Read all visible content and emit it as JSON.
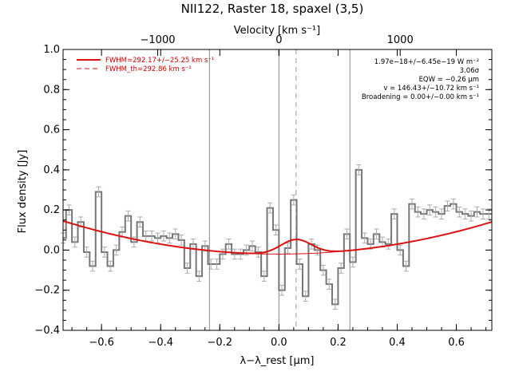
{
  "chart_data": {
    "type": "line",
    "title": "NII122, Raster 18, spaxel (3,5)",
    "xlabel": "λ−λ_rest [μm]",
    "ylabel": "Flux density [Jy]",
    "top_axis_label": "Velocity [km s⁻¹]",
    "xlim": [
      -0.73,
      0.72
    ],
    "ylim": [
      -0.4,
      1.0
    ],
    "x_ticks": [
      -0.6,
      -0.4,
      -0.2,
      0.0,
      0.2,
      0.4,
      0.6
    ],
    "x_tick_labels": [
      "−0.6",
      "−0.4",
      "−0.2",
      "0.0",
      "0.2",
      "0.4",
      "0.6"
    ],
    "y_ticks": [
      -0.4,
      -0.2,
      0.0,
      0.2,
      0.4,
      0.6,
      0.8,
      1.0
    ],
    "y_tick_labels": [
      "−0.4",
      "−0.2",
      "0.0",
      "0.2",
      "0.4",
      "0.6",
      "0.8",
      "1.0"
    ],
    "top_ticks_um": [
      -0.41,
      0.0,
      0.41
    ],
    "top_tick_labels": [
      "−1000",
      "0",
      "1000"
    ],
    "vertical_lines_um": [
      -0.235,
      0.0,
      0.24
    ],
    "line_center_um": 0.058,
    "series": [
      {
        "name": "spectrum",
        "kind": "step",
        "color": "#777777",
        "x": [
          -0.73,
          -0.71,
          -0.69,
          -0.67,
          -0.65,
          -0.63,
          -0.61,
          -0.59,
          -0.57,
          -0.55,
          -0.53,
          -0.51,
          -0.49,
          -0.47,
          -0.45,
          -0.43,
          -0.41,
          -0.39,
          -0.37,
          -0.35,
          -0.33,
          -0.31,
          -0.29,
          -0.27,
          -0.25,
          -0.23,
          -0.21,
          -0.19,
          -0.17,
          -0.15,
          -0.13,
          -0.11,
          -0.09,
          -0.07,
          -0.05,
          -0.03,
          -0.01,
          0.01,
          0.03,
          0.05,
          0.07,
          0.09,
          0.11,
          0.13,
          0.15,
          0.17,
          0.19,
          0.21,
          0.23,
          0.25,
          0.27,
          0.29,
          0.31,
          0.33,
          0.35,
          0.37,
          0.39,
          0.41,
          0.43,
          0.45,
          0.47,
          0.49,
          0.51,
          0.53,
          0.55,
          0.57,
          0.59,
          0.61,
          0.63,
          0.65,
          0.67,
          0.69,
          0.71
        ],
        "y": [
          0.06,
          0.2,
          0.04,
          0.14,
          -0.01,
          -0.08,
          0.29,
          -0.01,
          -0.08,
          0.0,
          0.09,
          0.17,
          0.04,
          0.14,
          0.07,
          0.07,
          0.06,
          0.07,
          0.06,
          0.08,
          0.05,
          -0.09,
          0.03,
          -0.13,
          0.02,
          -0.07,
          -0.07,
          -0.02,
          0.03,
          -0.02,
          -0.02,
          0.0,
          0.02,
          -0.01,
          -0.13,
          0.21,
          0.1,
          -0.2,
          0.01,
          0.25,
          -0.07,
          -0.23,
          0.03,
          0.0,
          -0.1,
          -0.17,
          -0.27,
          -0.09,
          0.08,
          -0.06,
          0.4,
          0.06,
          0.03,
          0.08,
          0.04,
          0.03,
          0.18,
          0.0,
          -0.08,
          0.23,
          0.19,
          0.18,
          0.2,
          0.19,
          0.18,
          0.22,
          0.23,
          0.19,
          0.18,
          0.17,
          0.19,
          0.18,
          0.18
        ]
      },
      {
        "name": "FWHM=292.17+/−25.25 km s⁻¹",
        "kind": "fit",
        "color": "#dd1111",
        "baseline_coeffs": [
          -0.02,
          0.0,
          0.31
        ],
        "gauss": {
          "center": 0.058,
          "amp": 0.072,
          "sigma": 0.052
        }
      }
    ],
    "legend": [
      {
        "label": "FWHM=292.17+/−25.25 km s⁻¹",
        "style": "solid",
        "color": "#dd1111"
      },
      {
        "label": "FWHM_th=292.86 km s⁻¹",
        "style": "dashed",
        "color": "#dd1111"
      }
    ],
    "legend_position": "top-left",
    "annotations": [
      "1.97e−18+/−6.45e−19 W m⁻²",
      "3.06σ",
      "EQW = −0.26 μm",
      "v = 146.43+/−10.72 km s⁻¹",
      "Broadening = 0.00+/−0.00 km s⁻¹"
    ],
    "annotation_position": "top-right"
  }
}
